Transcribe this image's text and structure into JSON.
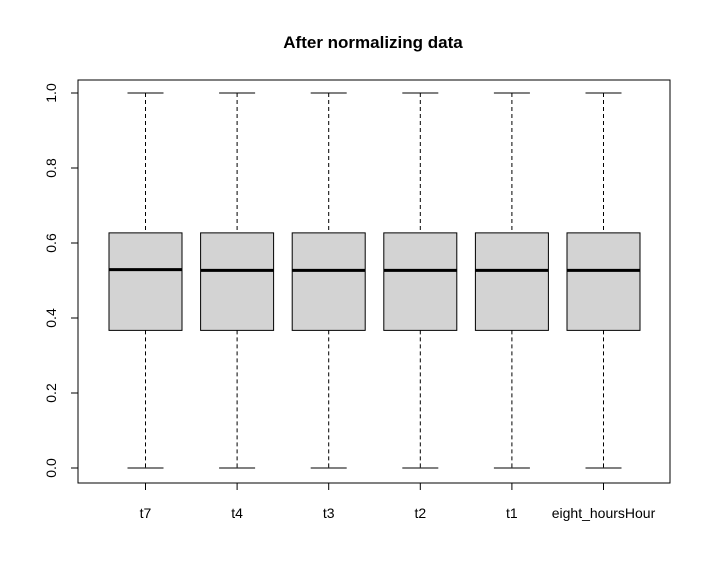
{
  "chart_data": {
    "type": "boxplot",
    "title": "After normalizing data",
    "xlabel": "",
    "ylabel": "",
    "ylim": [
      0.0,
      1.0
    ],
    "yticks": [
      0.0,
      0.2,
      0.4,
      0.6,
      0.8,
      1.0
    ],
    "ytick_labels": [
      "0.0",
      "0.2",
      "0.4",
      "0.6",
      "0.8",
      "1.0"
    ],
    "categories": [
      "t7",
      "t4",
      "t3",
      "t2",
      "t1",
      "eight_hoursHour"
    ],
    "boxes": [
      {
        "min": 0.0,
        "q1": 0.367,
        "median": 0.529,
        "q3": 0.627,
        "max": 1.0
      },
      {
        "min": 0.0,
        "q1": 0.367,
        "median": 0.527,
        "q3": 0.627,
        "max": 1.0
      },
      {
        "min": 0.0,
        "q1": 0.367,
        "median": 0.527,
        "q3": 0.627,
        "max": 1.0
      },
      {
        "min": 0.0,
        "q1": 0.367,
        "median": 0.527,
        "q3": 0.627,
        "max": 1.0
      },
      {
        "min": 0.0,
        "q1": 0.367,
        "median": 0.527,
        "q3": 0.627,
        "max": 1.0
      },
      {
        "min": 0.0,
        "q1": 0.367,
        "median": 0.527,
        "q3": 0.627,
        "max": 1.0
      }
    ],
    "box_fill": "#d3d3d3",
    "grid": false
  }
}
